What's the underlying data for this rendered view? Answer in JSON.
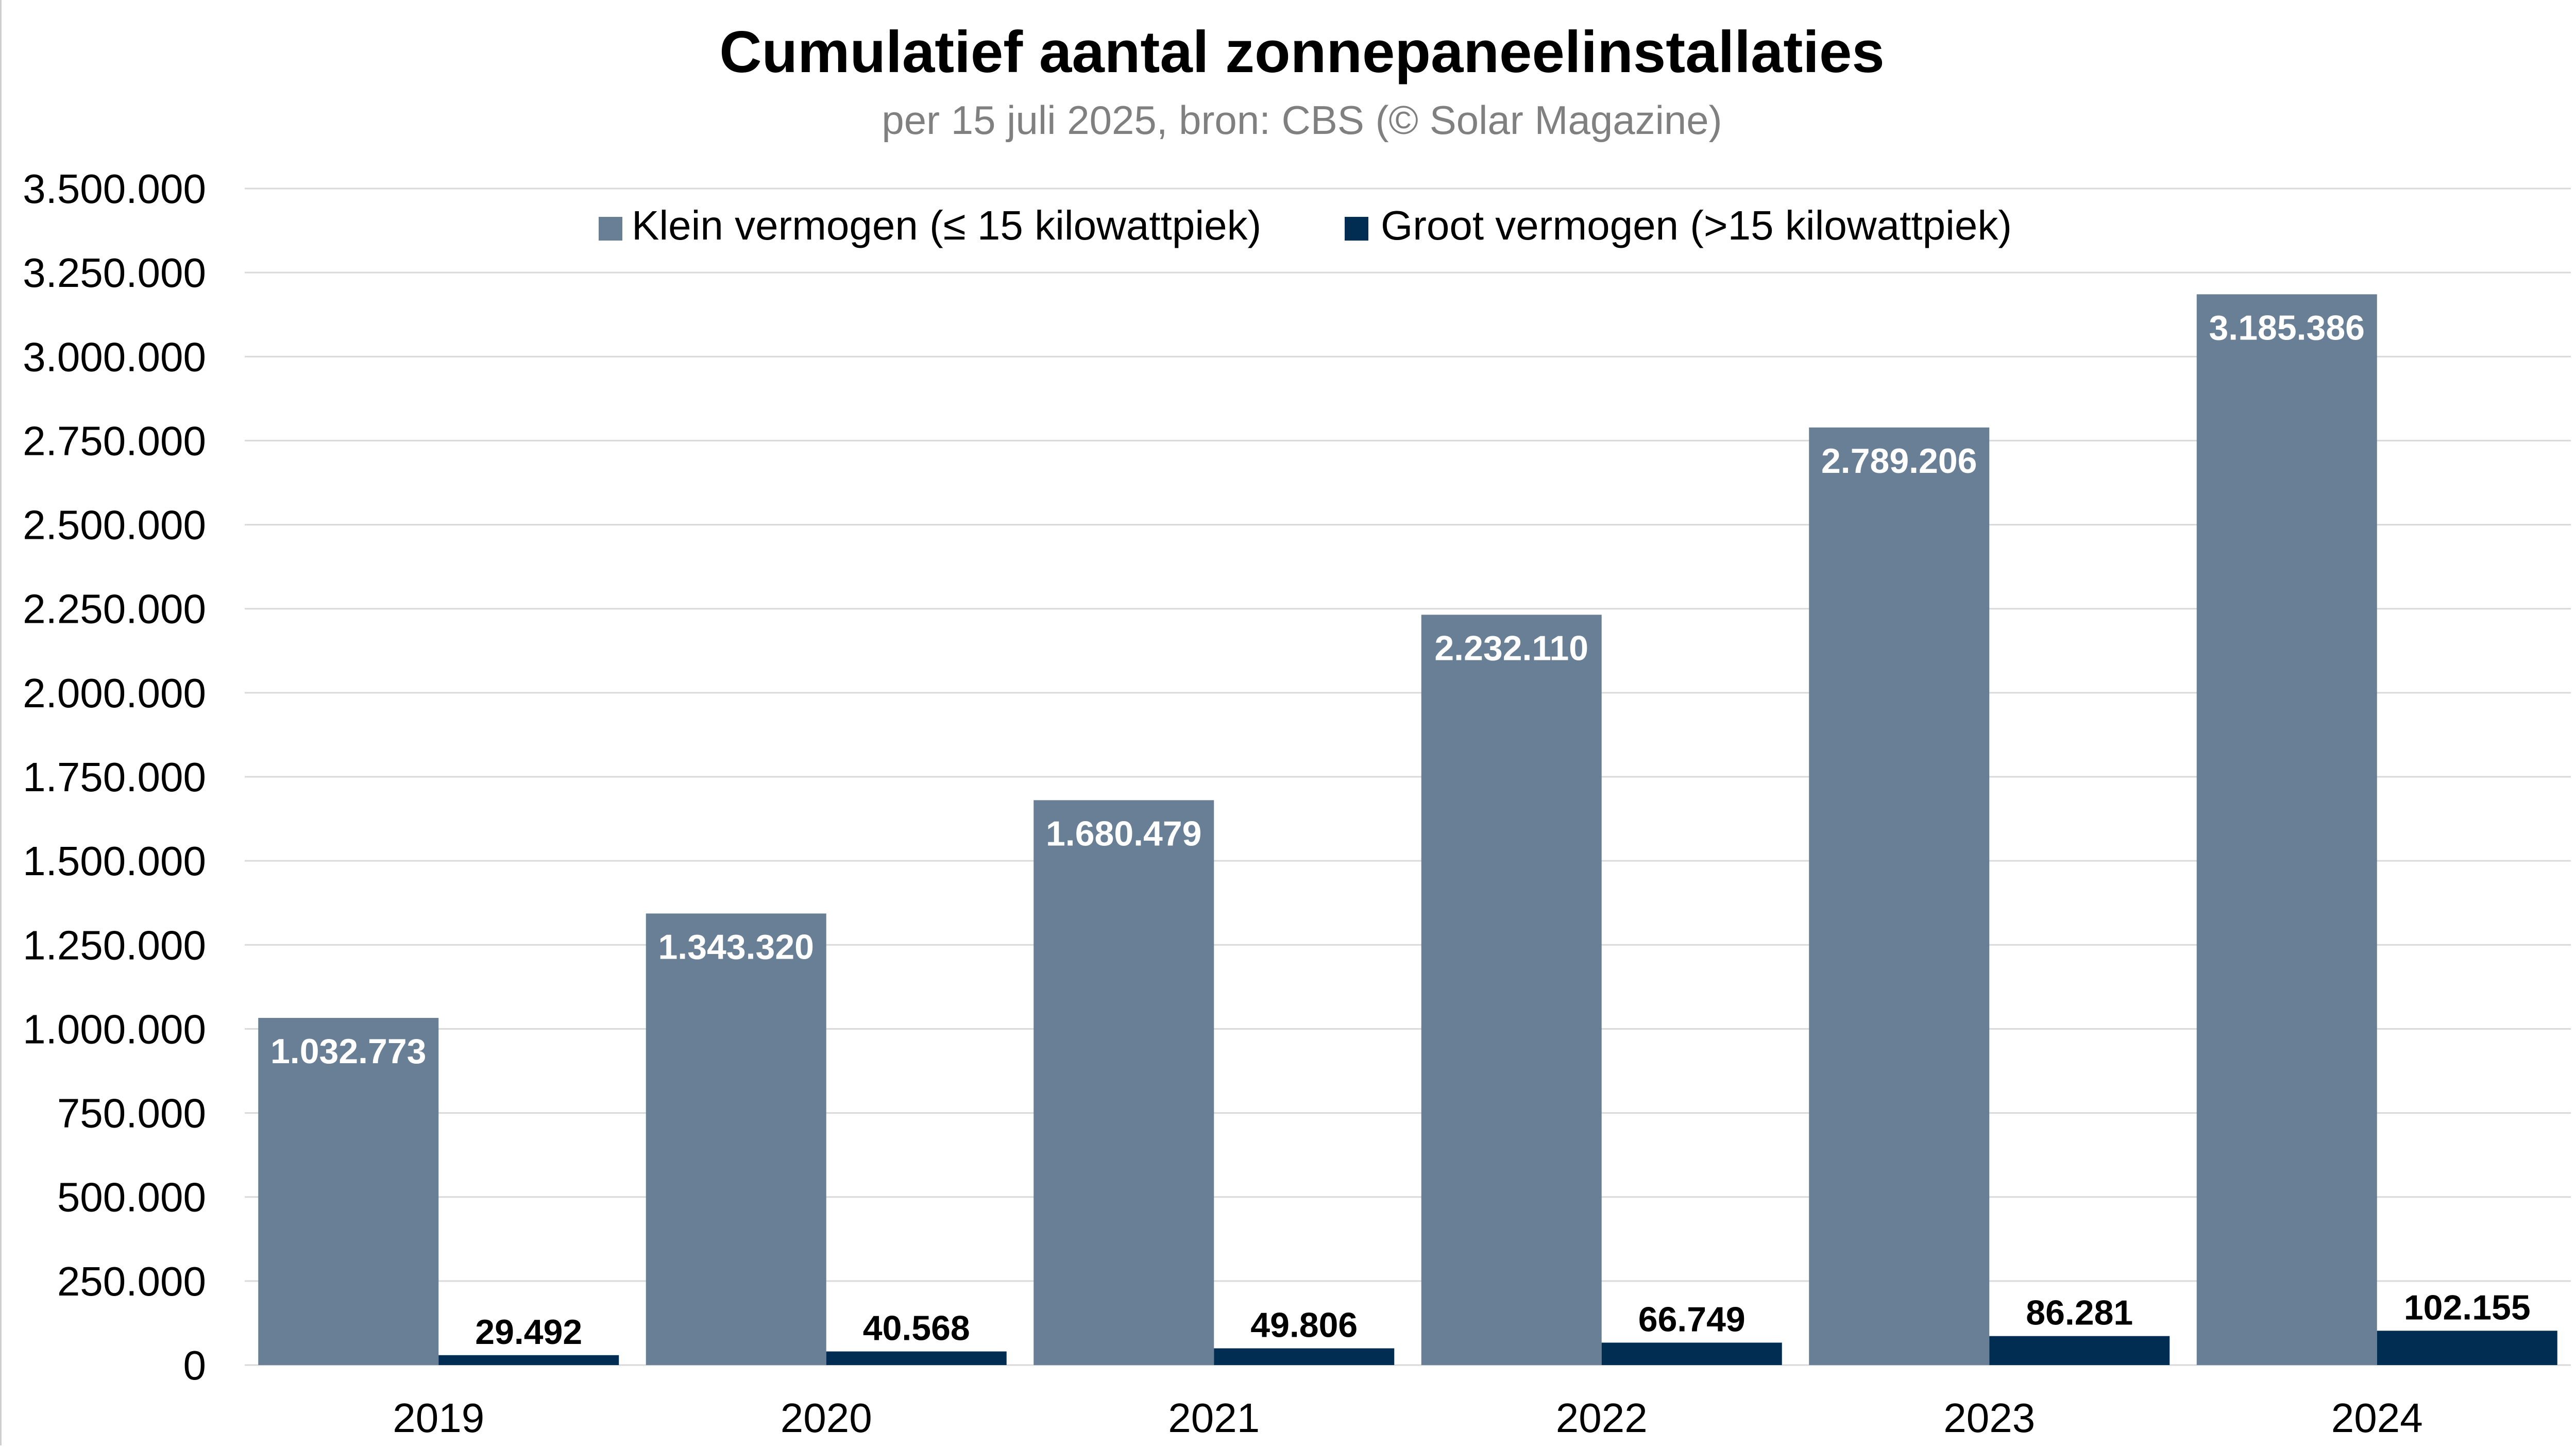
{
  "chart_data": {
    "type": "bar",
    "title": "Cumulatief aantal zonnepaneelinstallaties",
    "subtitle": "per 15 juli 2025, bron: CBS (© Solar Magazine)",
    "categories": [
      "2019",
      "2020",
      "2021",
      "2022",
      "2023",
      "2024"
    ],
    "series": [
      {
        "name": "Klein vermogen (≤ 15 kilowattpiek)",
        "color": "#687f96",
        "values": [
          1032773,
          1343320,
          1680479,
          2232110,
          2789206,
          3185386
        ],
        "labels": [
          "1.032.773",
          "1.343.320",
          "1.680.479",
          "2.232.110",
          "2.789.206",
          "3.185.386"
        ]
      },
      {
        "name": "Groot vermogen (>15 kilowattpiek)",
        "color": "#022d52",
        "values": [
          29492,
          40568,
          49806,
          66749,
          86281,
          102155
        ],
        "labels": [
          "29.492",
          "40.568",
          "49.806",
          "66.749",
          "86.281",
          "102.155"
        ]
      }
    ],
    "yticks": [
      "0",
      "250.000",
      "500.000",
      "750.000",
      "1.000.000",
      "1.250.000",
      "1.500.000",
      "1.750.000",
      "2.000.000",
      "2.250.000",
      "2.500.000",
      "2.750.000",
      "3.000.000",
      "3.250.000",
      "3.500.000"
    ],
    "ylim": [
      0,
      3500000
    ],
    "grid": true,
    "legend_position": "top-center"
  }
}
